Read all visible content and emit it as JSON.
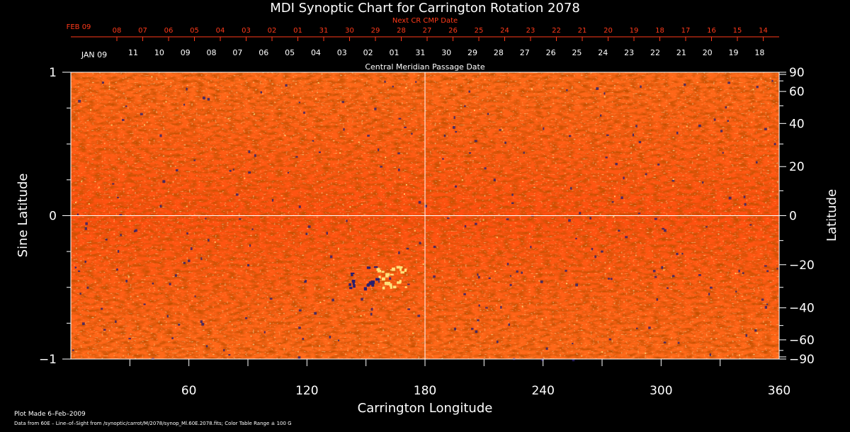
{
  "chart_data": {
    "type": "heatmap",
    "title": "MDI Synoptic Chart for Carrington Rotation 2078",
    "top_axis": {
      "label": "Next CR CMP Date",
      "start_label": "FEB 09",
      "ticks": [
        "08",
        "07",
        "06",
        "05",
        "04",
        "03",
        "02",
        "01",
        "31",
        "30",
        "29",
        "28",
        "27",
        "26",
        "25",
        "24",
        "23",
        "22",
        "21",
        "20",
        "19",
        "18",
        "17",
        "16",
        "15",
        "14"
      ]
    },
    "second_axis": {
      "label": "Central Meridian Passage Date",
      "start_label": "JAN 09",
      "ticks": [
        "11",
        "10",
        "09",
        "08",
        "07",
        "06",
        "05",
        "04",
        "03",
        "02",
        "01",
        "31",
        "30",
        "29",
        "28",
        "27",
        "26",
        "25",
        "24",
        "23",
        "22",
        "21",
        "20",
        "19",
        "18"
      ]
    },
    "xlabel": "Carrington Longitude",
    "xlim": [
      0,
      360
    ],
    "xticks": [
      "60",
      "120",
      "180",
      "240",
      "300",
      "360"
    ],
    "ylabel_left": "Sine Latitude",
    "ylim": [
      -1,
      1
    ],
    "yticks_left": [
      "1",
      "0",
      "−1"
    ],
    "ylabel_right": "Latitude",
    "yticks_right": [
      "90",
      "60",
      "40",
      "20",
      "0",
      "−20",
      "−40",
      "−60",
      "−90"
    ],
    "grid_lines": [
      "longitude 180",
      "sine latitude 0"
    ],
    "color_table_range_gauss": 100,
    "colors": {
      "background": "#000000",
      "field_base": "#ff5a12",
      "negative_polarity": "#2a1f6e",
      "positive_polarity": "#ffe07a",
      "label_red": "#ff3a1a"
    }
  },
  "footer": {
    "plot_made": "Plot Made  6–Feb–2009",
    "source": "Data from 60E – Line–of–Sight from /synoptic/carrot/M/2078/synop_Ml.60E.2078.fits; Color Table Range ± 100 G"
  }
}
